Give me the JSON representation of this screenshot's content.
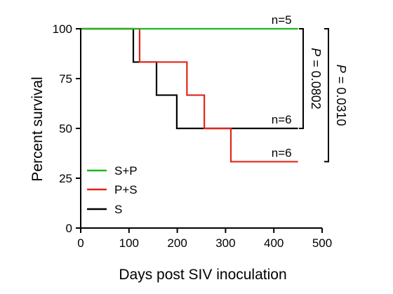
{
  "chart_data": {
    "type": "line",
    "step": true,
    "xlabel": "Days post SIV inoculation",
    "ylabel": "Percent survival",
    "xlim": [
      0,
      500
    ],
    "ylim": [
      0,
      100
    ],
    "xticks": [
      "0",
      "100",
      "200",
      "300",
      "400",
      "500"
    ],
    "yticks": [
      "0",
      "25",
      "50",
      "75",
      "100"
    ],
    "grid": false,
    "legend_position": "bottom-left",
    "series": [
      {
        "name": "S+P",
        "color": "#1db81d",
        "x": [
          0,
          450
        ],
        "y": [
          100,
          100
        ],
        "n_label": "n=5"
      },
      {
        "name": "P+S",
        "color": "#e3241b",
        "x": [
          0,
          122,
          220,
          256,
          311,
          450
        ],
        "y": [
          100,
          83.3,
          66.7,
          50,
          33.3,
          33.3
        ],
        "n_label": "n=6"
      },
      {
        "name": "S",
        "color": "#000000",
        "x": [
          0,
          109,
          157,
          199,
          450
        ],
        "y": [
          100,
          83.3,
          66.7,
          50,
          50
        ],
        "n_label": "n=6"
      }
    ],
    "annotations": [
      {
        "text": "P = 0.0802",
        "between": [
          "S+P",
          "S"
        ]
      },
      {
        "text": "P = 0.0310",
        "between": [
          "S+P",
          "P+S"
        ]
      }
    ]
  }
}
